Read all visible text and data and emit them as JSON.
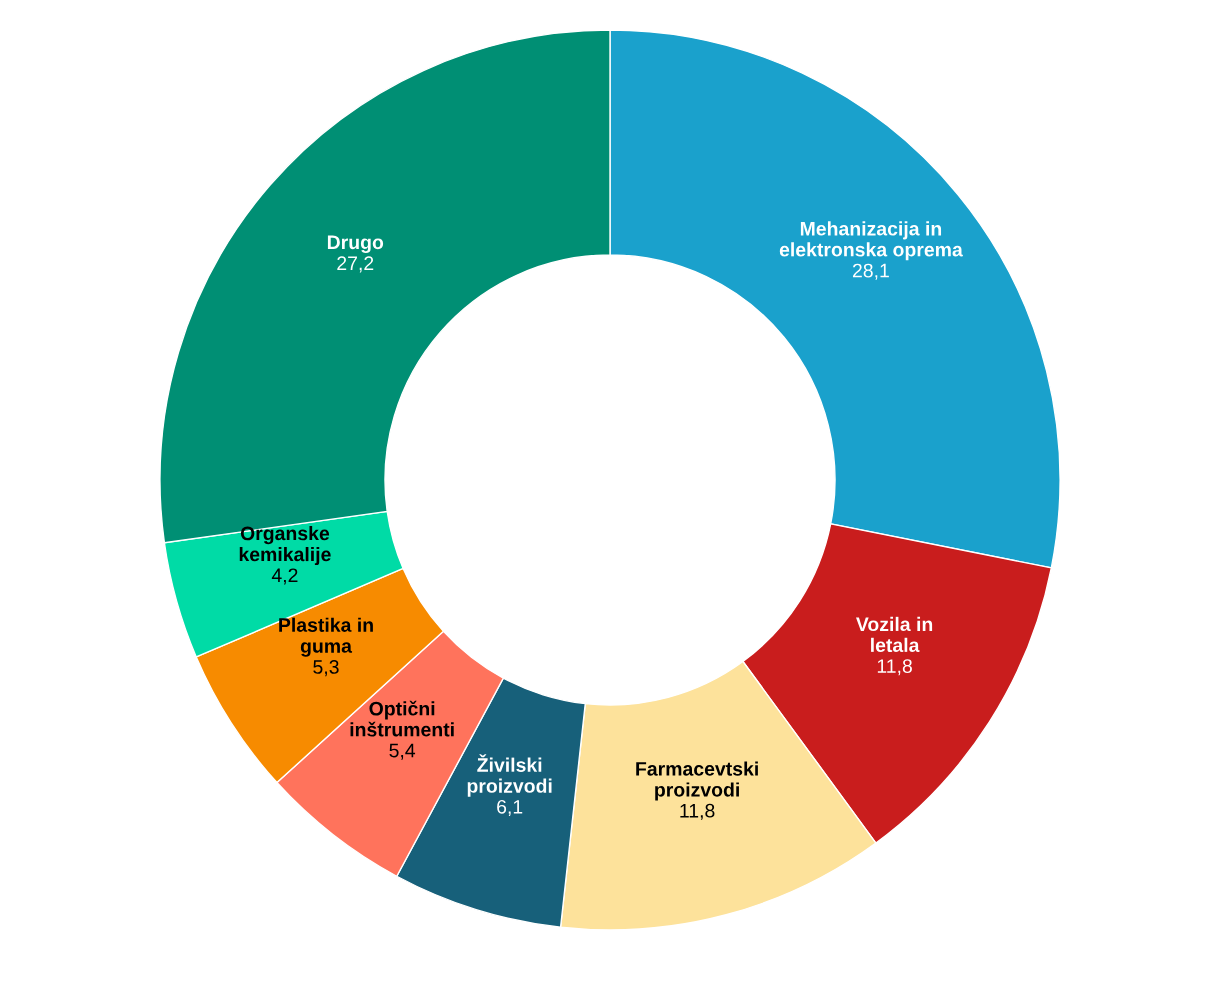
{
  "chart_data": {
    "type": "donut",
    "categories": [
      "Mehanizacija in\nelektronska oprema",
      "Vozila in\nletala",
      "Farmacevtski\nproizvodi",
      "Živilski\nproizvodi",
      "Optični\ninštrumenti",
      "Plastika in\nguma",
      "Organske\nkemikalije",
      "Drugo"
    ],
    "values": [
      28.1,
      11.8,
      11.8,
      6.1,
      5.4,
      5.3,
      4.2,
      27.2
    ],
    "value_labels": [
      "28,1",
      "11,8",
      "11,8",
      "6,1",
      "5,4",
      "5,3",
      "4,2",
      "27,2"
    ],
    "colors": [
      "#1aa1cc",
      "#c91d1d",
      "#fde29b",
      "#17607a",
      "#ff735c",
      "#f78b00",
      "#00dba6",
      "#008f74"
    ],
    "legend": false
  }
}
